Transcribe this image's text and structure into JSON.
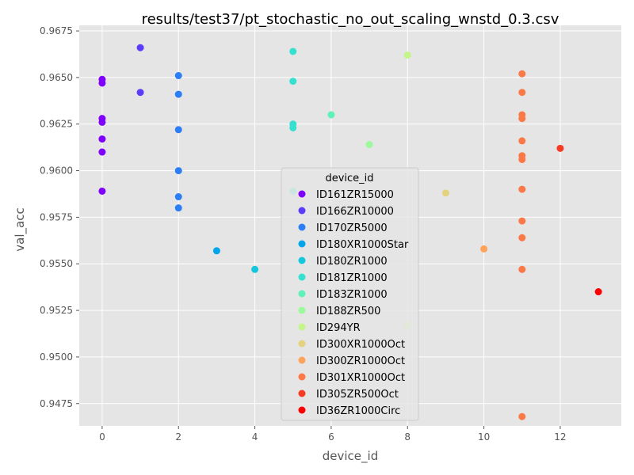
{
  "chart_data": {
    "type": "scatter",
    "title": "results/test37/pt_stochastic_no_out_scaling_wnstd_0.3.csv",
    "xlabel": "device_id",
    "ylabel": "val_acc",
    "xlim": [
      -0.6,
      13.6
    ],
    "ylim": [
      0.9463,
      0.9678
    ],
    "xticks": [
      0,
      2,
      4,
      6,
      8,
      10,
      12
    ],
    "yticks": [
      0.9475,
      0.95,
      0.9525,
      0.955,
      0.9575,
      0.96,
      0.9625,
      0.965,
      0.9675
    ],
    "grid": true,
    "legend": {
      "title": "device_id",
      "placement": "center"
    },
    "series": [
      {
        "name": "ID161ZR15000",
        "color": "#8000ff",
        "points": [
          [
            0,
            0.9649
          ],
          [
            0,
            0.9647
          ],
          [
            0,
            0.9628
          ],
          [
            0,
            0.9626
          ],
          [
            0,
            0.9617
          ],
          [
            0,
            0.961
          ],
          [
            0,
            0.9589
          ]
        ]
      },
      {
        "name": "ID166ZR10000",
        "color": "#5a3dfb",
        "points": [
          [
            1,
            0.9666
          ],
          [
            1,
            0.9642
          ]
        ]
      },
      {
        "name": "ID170ZR5000",
        "color": "#2c7ef7",
        "points": [
          [
            2,
            0.9651
          ],
          [
            2,
            0.9641
          ],
          [
            2,
            0.9622
          ],
          [
            2,
            0.96
          ],
          [
            2,
            0.9586
          ],
          [
            2,
            0.958
          ]
        ]
      },
      {
        "name": "ID180XR1000Star",
        "color": "#00a5ea",
        "points": [
          [
            3,
            0.9557
          ]
        ]
      },
      {
        "name": "ID180ZR1000",
        "color": "#14c7dd",
        "points": [
          [
            4,
            0.9547
          ]
        ]
      },
      {
        "name": "ID181ZR1000",
        "color": "#36e0d0",
        "points": [
          [
            5,
            0.9664
          ],
          [
            5,
            0.9648
          ],
          [
            5,
            0.9625
          ],
          [
            5,
            0.9623
          ],
          [
            5,
            0.9589
          ]
        ]
      },
      {
        "name": "ID183ZR1000",
        "color": "#5ff2b8",
        "points": [
          [
            6,
            0.963
          ]
        ]
      },
      {
        "name": "ID188ZR500",
        "color": "#9cf99c",
        "points": [
          [
            7,
            0.9614
          ]
        ]
      },
      {
        "name": "ID294YR",
        "color": "#c3f58b",
        "points": [
          [
            8,
            0.9662
          ],
          [
            8,
            0.9517
          ]
        ]
      },
      {
        "name": "ID300XR1000Oct",
        "color": "#e4d37e",
        "points": [
          [
            9,
            0.9588
          ]
        ]
      },
      {
        "name": "ID300ZR1000Oct",
        "color": "#ffa25a",
        "points": [
          [
            10,
            0.9558
          ]
        ]
      },
      {
        "name": "ID301XR1000Oct",
        "color": "#fb7847",
        "points": [
          [
            11,
            0.9652
          ],
          [
            11,
            0.9642
          ],
          [
            11,
            0.963
          ],
          [
            11,
            0.9628
          ],
          [
            11,
            0.9616
          ],
          [
            11,
            0.9608
          ],
          [
            11,
            0.9606
          ],
          [
            11,
            0.959
          ],
          [
            11,
            0.9573
          ],
          [
            11,
            0.9564
          ],
          [
            11,
            0.9547
          ],
          [
            11,
            0.9468
          ]
        ]
      },
      {
        "name": "ID305ZR500Oct",
        "color": "#f63b24",
        "points": [
          [
            12,
            0.9612
          ]
        ]
      },
      {
        "name": "ID36ZR1000Circ",
        "color": "#ff0000",
        "points": [
          [
            13,
            0.9535
          ]
        ]
      }
    ]
  }
}
